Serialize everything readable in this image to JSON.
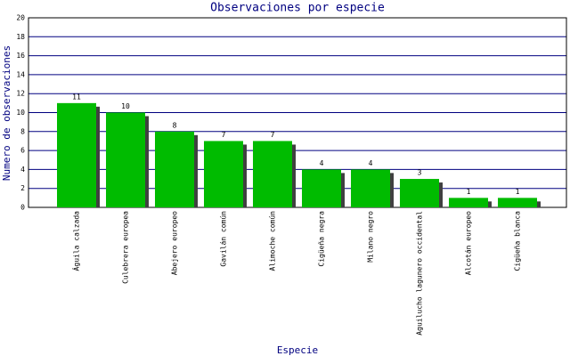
{
  "chart_data": {
    "type": "bar",
    "title": "Observaciones por especie",
    "x_label": "Especie",
    "y_label": "Numero de observaciones",
    "categories": [
      "Águila calzada",
      "Culebrera europea",
      "Abejero europeo",
      "Gavilán común",
      "Alimoche común",
      "Cigüeña negra",
      "Milano negro",
      "Aguilucho lagunero occidental",
      "Alcotán europeo",
      "Cigüeña blanca"
    ],
    "values": [
      11,
      10,
      8,
      7,
      7,
      4,
      4,
      3,
      1,
      1
    ],
    "color": "#00bb00",
    "shadow_color": "#404040",
    "grid_color": "#000080",
    "ylim": [
      0,
      20
    ],
    "yticks": [
      0,
      2,
      4,
      6,
      8,
      10,
      12,
      14,
      16,
      18,
      20
    ],
    "grid": true
  }
}
